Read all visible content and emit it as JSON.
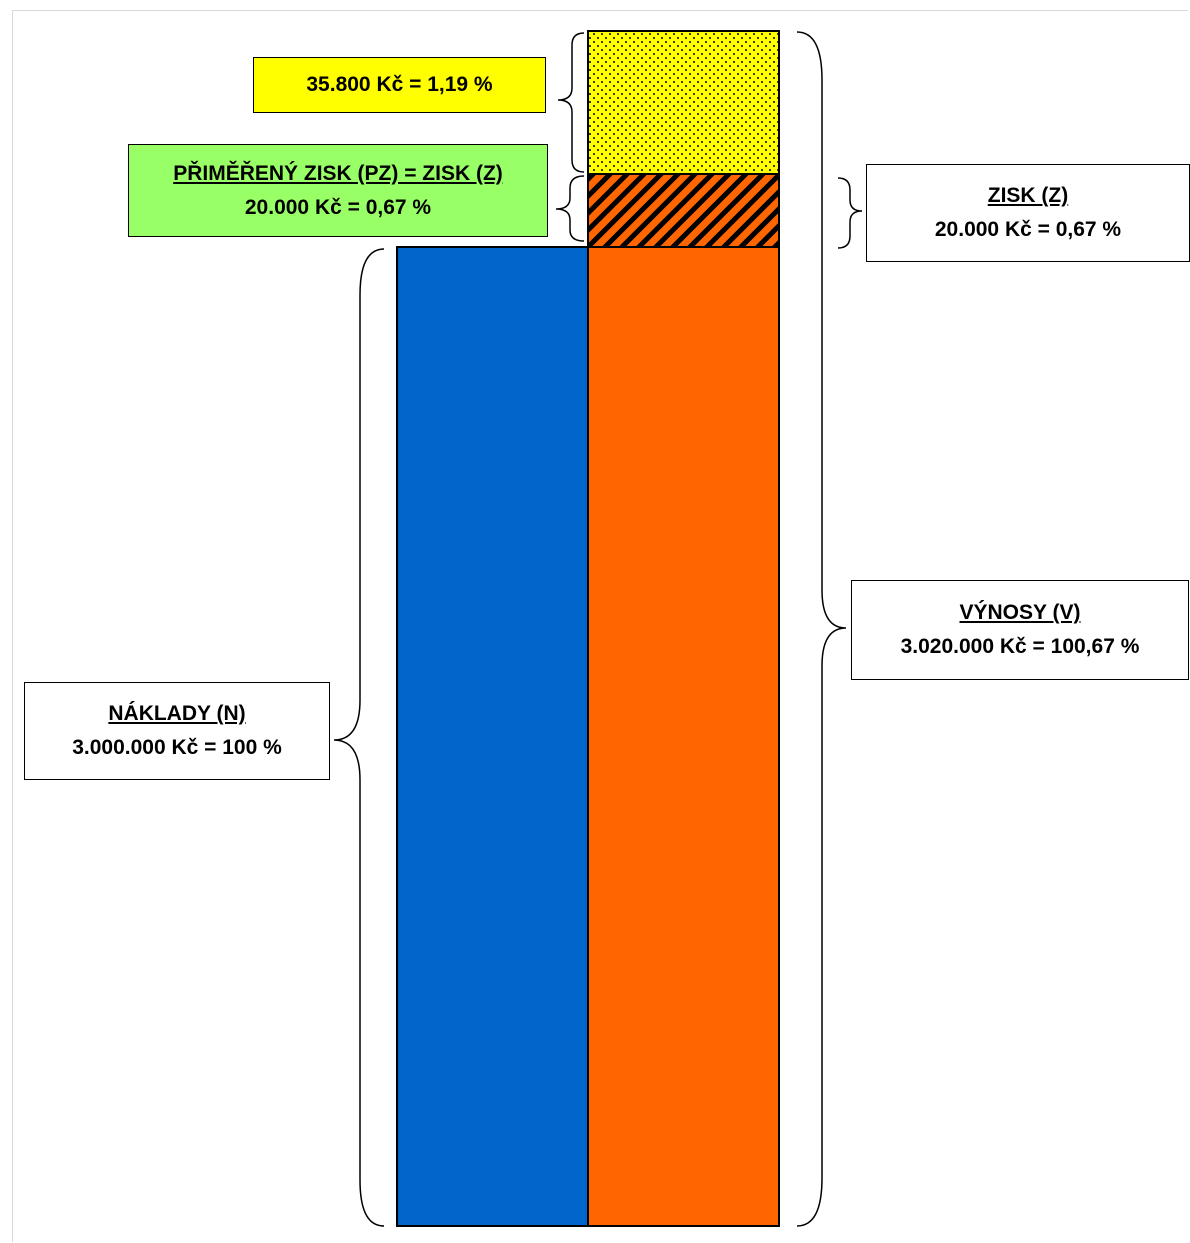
{
  "colors": {
    "naklady_bar": "#0066cc",
    "vynosy_bar": "#ff6600",
    "extra_block": "#ffff00",
    "zisk_hatch": "#ff6600",
    "green_label": "#99ff66",
    "yellow_label": "#ffff00"
  },
  "labels": {
    "extra": {
      "value": "35.800 Kč = 1,19 %"
    },
    "primereny_zisk": {
      "title": "PŘIMĚŘENÝ ZISK (PZ) = ZISK (Z)",
      "value": "20.000 Kč = 0,67 %"
    },
    "zisk": {
      "title": "ZISK (Z)",
      "value": "20.000 Kč = 0,67 %"
    },
    "vynosy": {
      "title": "VÝNOSY (V)",
      "value": "3.020.000 Kč = 100,67 %"
    },
    "naklady": {
      "title": "NÁKLADY (N)",
      "value": "3.000.000 Kč = 100 %"
    }
  }
}
